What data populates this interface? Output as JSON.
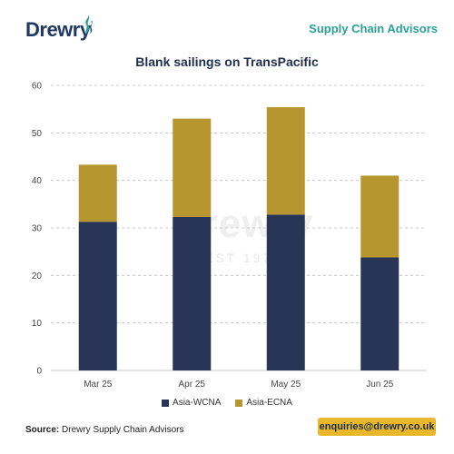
{
  "header": {
    "logo_text": "Drewry",
    "brand_right": "Supply Chain Advisors"
  },
  "watermark": {
    "text": "Drewry",
    "sub": "EST 1970"
  },
  "footer": {
    "source_label": "Source:",
    "source_text": " Drewry Supply Chain Advisors",
    "contact": "enquiries@drewry.co.uk"
  },
  "colors": {
    "wcna": "#283556",
    "ecna": "#b7952f",
    "brand_teal": "#2aa198",
    "contact_bg": "#e8b82a"
  },
  "chart_data": {
    "type": "bar",
    "stacked": true,
    "title": "Blank sailings on TransPacific",
    "categories": [
      "Mar 25",
      "Apr 25",
      "May 25",
      "Jun 25"
    ],
    "series": [
      {
        "name": "Asia-WCNA",
        "values": [
          31.3,
          32.3,
          32.8,
          23.8
        ]
      },
      {
        "name": "Asia-ECNA",
        "values": [
          12.0,
          20.7,
          22.6,
          17.2
        ]
      }
    ],
    "ylim": [
      0,
      60
    ],
    "yticks": [
      0,
      10,
      20,
      30,
      40,
      50,
      60
    ],
    "grid": true,
    "legend": "bottom"
  }
}
